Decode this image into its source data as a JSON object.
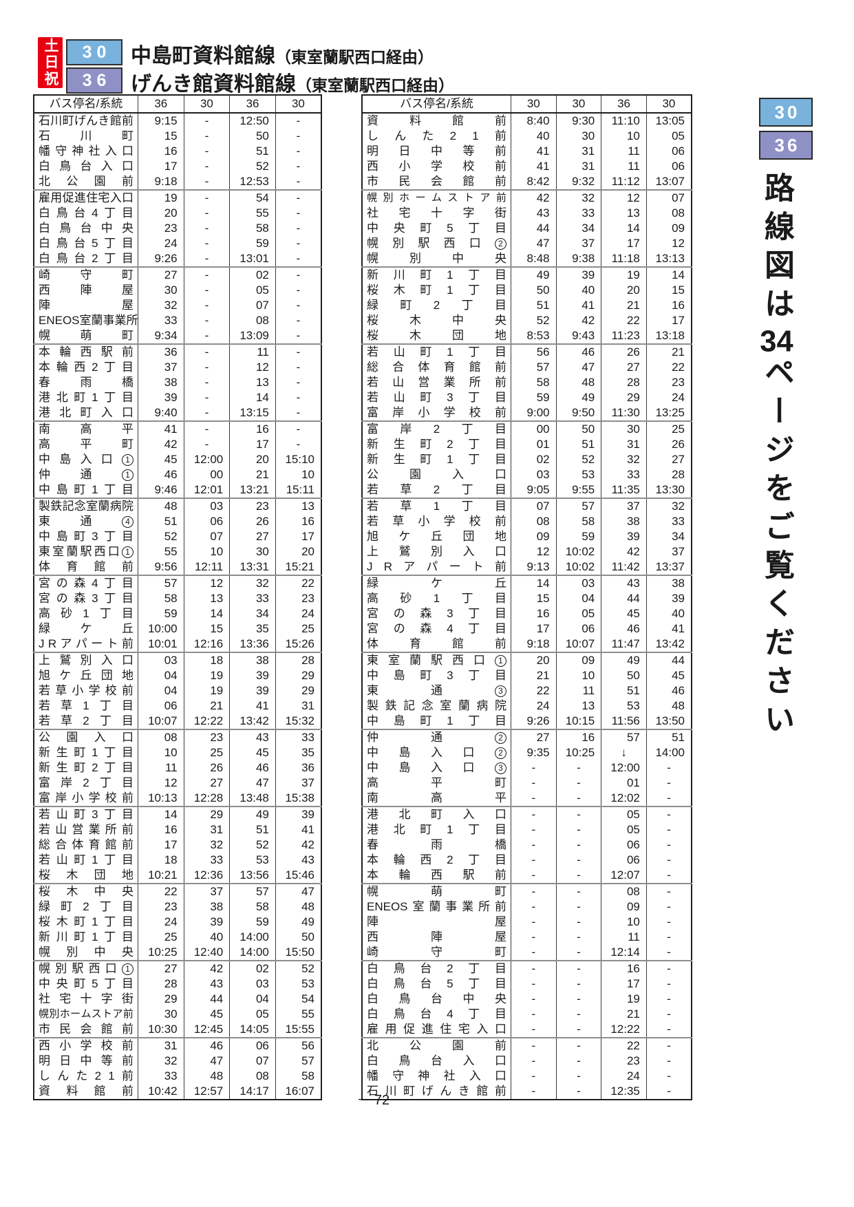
{
  "header": {
    "day_badge": "土日祝",
    "routes": [
      {
        "number": "30",
        "title": "中島町資料館線",
        "via": "（東室蘭駅西口経由）",
        "color": "#79b2dc"
      },
      {
        "number": "36",
        "title": "げんき館資料館線",
        "via": "（東室蘭駅西口経由）",
        "color": "#8f91c6"
      }
    ]
  },
  "sidebar": {
    "route_badges": [
      {
        "number": "30",
        "color": "#79b2dc"
      },
      {
        "number": "36",
        "color": "#8f91c6"
      }
    ],
    "note_prefix": "路線図は",
    "note_page": "34",
    "note_suffix": "ページをご覧ください"
  },
  "footer": {
    "page_number": "－ 72 －"
  },
  "colors": {
    "day_badge": "#e60012",
    "route30": "#79b2dc",
    "route36": "#8f91c6"
  },
  "tables": [
    {
      "header": [
        "バス停名/系統",
        "36",
        "30",
        "36",
        "30"
      ],
      "rows": [
        [
          "石川町げんき館前",
          "9:15",
          "-",
          "12:50",
          "-"
        ],
        [
          "石川町",
          "15",
          "-",
          "50",
          "-"
        ],
        [
          "幡守神社入口",
          "16",
          "-",
          "51",
          "-"
        ],
        [
          "白鳥台入口",
          "17",
          "-",
          "52",
          "-"
        ],
        [
          "北公園前",
          "9:18",
          "-",
          "12:53",
          "-"
        ],
        [
          "雇用促進住宅入口",
          "19",
          "-",
          "54",
          "-"
        ],
        [
          "白鳥台4丁目",
          "20",
          "-",
          "55",
          "-"
        ],
        [
          "白鳥台中央",
          "23",
          "-",
          "58",
          "-"
        ],
        [
          "白鳥台5丁目",
          "24",
          "-",
          "59",
          "-"
        ],
        [
          "白鳥台2丁目",
          "9:26",
          "-",
          "13:01",
          "-"
        ],
        [
          "崎守町",
          "27",
          "-",
          "02",
          "-"
        ],
        [
          "西陣屋",
          "30",
          "-",
          "05",
          "-"
        ],
        [
          "陣屋",
          "32",
          "-",
          "07",
          "-"
        ],
        [
          "ENEOS室蘭事業所前",
          "33",
          "-",
          "08",
          "-"
        ],
        [
          "幌萌町",
          "9:34",
          "-",
          "13:09",
          "-"
        ],
        [
          "本輪西駅前",
          "36",
          "-",
          "11",
          "-"
        ],
        [
          "本輪西2丁目",
          "37",
          "-",
          "12",
          "-"
        ],
        [
          "春雨橋",
          "38",
          "-",
          "13",
          "-"
        ],
        [
          "港北町1丁目",
          "39",
          "-",
          "14",
          "-"
        ],
        [
          "港北町入口",
          "9:40",
          "-",
          "13:15",
          "-"
        ],
        [
          "南高平",
          "41",
          "-",
          "16",
          "-"
        ],
        [
          "高平町",
          "42",
          "-",
          "17",
          "-"
        ],
        [
          "中島入口①",
          "45",
          "12:00",
          "20",
          "15:10"
        ],
        [
          "仲通①",
          "46",
          "00",
          "21",
          "10"
        ],
        [
          "中島町1丁目",
          "9:46",
          "12:01",
          "13:21",
          "15:11"
        ],
        [
          "製鉄記念室蘭病院",
          "48",
          "03",
          "23",
          "13"
        ],
        [
          "東通④",
          "51",
          "06",
          "26",
          "16"
        ],
        [
          "中島町3丁目",
          "52",
          "07",
          "27",
          "17"
        ],
        [
          "東室蘭駅西口①",
          "55",
          "10",
          "30",
          "20"
        ],
        [
          "体育館前",
          "9:56",
          "12:11",
          "13:31",
          "15:21"
        ],
        [
          "宮の森4丁目",
          "57",
          "12",
          "32",
          "22"
        ],
        [
          "宮の森3丁目",
          "58",
          "13",
          "33",
          "23"
        ],
        [
          "高砂1丁目",
          "59",
          "14",
          "34",
          "24"
        ],
        [
          "緑ケ丘",
          "10:00",
          "15",
          "35",
          "25"
        ],
        [
          "JRアパート前",
          "10:01",
          "12:16",
          "13:36",
          "15:26"
        ],
        [
          "上鷲別入口",
          "03",
          "18",
          "38",
          "28"
        ],
        [
          "旭ケ丘団地",
          "04",
          "19",
          "39",
          "29"
        ],
        [
          "若草小学校前",
          "04",
          "19",
          "39",
          "29"
        ],
        [
          "若草1丁目",
          "06",
          "21",
          "41",
          "31"
        ],
        [
          "若草2丁目",
          "10:07",
          "12:22",
          "13:42",
          "15:32"
        ],
        [
          "公園入口",
          "08",
          "23",
          "43",
          "33"
        ],
        [
          "新生町1丁目",
          "10",
          "25",
          "45",
          "35"
        ],
        [
          "新生町2丁目",
          "11",
          "26",
          "46",
          "36"
        ],
        [
          "富岸2丁目",
          "12",
          "27",
          "47",
          "37"
        ],
        [
          "富岸小学校前",
          "10:13",
          "12:28",
          "13:48",
          "15:38"
        ],
        [
          "若山町3丁目",
          "14",
          "29",
          "49",
          "39"
        ],
        [
          "若山営業所前",
          "16",
          "31",
          "51",
          "41"
        ],
        [
          "総合体育館前",
          "17",
          "32",
          "52",
          "42"
        ],
        [
          "若山町1丁目",
          "18",
          "33",
          "53",
          "43"
        ],
        [
          "桜木団地",
          "10:21",
          "12:36",
          "13:56",
          "15:46"
        ],
        [
          "桜木中央",
          "22",
          "37",
          "57",
          "47"
        ],
        [
          "緑町2丁目",
          "23",
          "38",
          "58",
          "48"
        ],
        [
          "桜木町1丁目",
          "24",
          "39",
          "59",
          "49"
        ],
        [
          "新川町1丁目",
          "25",
          "40",
          "14:00",
          "50"
        ],
        [
          "幌別中央",
          "10:25",
          "12:40",
          "14:00",
          "15:50"
        ],
        [
          "幌別駅西口①",
          "27",
          "42",
          "02",
          "52"
        ],
        [
          "中央町5丁目",
          "28",
          "43",
          "03",
          "53"
        ],
        [
          "社宅十字街",
          "29",
          "44",
          "04",
          "54"
        ],
        [
          "幌別ホームストア前",
          "30",
          "45",
          "05",
          "55"
        ],
        [
          "市民会館前",
          "10:30",
          "12:45",
          "14:05",
          "15:55"
        ],
        [
          "西小学校前",
          "31",
          "46",
          "06",
          "56"
        ],
        [
          "明日中等前",
          "32",
          "47",
          "07",
          "57"
        ],
        [
          "しんた21前",
          "33",
          "48",
          "08",
          "58"
        ],
        [
          "資料館前",
          "10:42",
          "12:57",
          "14:17",
          "16:07"
        ]
      ]
    },
    {
      "header": [
        "バス停名/系統",
        "30",
        "30",
        "36",
        "30"
      ],
      "rows": [
        [
          "資料館前",
          "8:40",
          "9:30",
          "11:10",
          "13:05"
        ],
        [
          "しんた21前",
          "40",
          "30",
          "10",
          "05"
        ],
        [
          "明日中等前",
          "41",
          "31",
          "11",
          "06"
        ],
        [
          "西小学校前",
          "41",
          "31",
          "11",
          "06"
        ],
        [
          "市民会館前",
          "8:42",
          "9:32",
          "11:12",
          "13:07"
        ],
        [
          "幌別ホームストア前",
          "42",
          "32",
          "12",
          "07"
        ],
        [
          "社宅十字街",
          "43",
          "33",
          "13",
          "08"
        ],
        [
          "中央町5丁目",
          "44",
          "34",
          "14",
          "09"
        ],
        [
          "幌別駅西口②",
          "47",
          "37",
          "17",
          "12"
        ],
        [
          "幌別中央",
          "8:48",
          "9:38",
          "11:18",
          "13:13"
        ],
        [
          "新川町1丁目",
          "49",
          "39",
          "19",
          "14"
        ],
        [
          "桜木町1丁目",
          "50",
          "40",
          "20",
          "15"
        ],
        [
          "緑町2丁目",
          "51",
          "41",
          "21",
          "16"
        ],
        [
          "桜木中央",
          "52",
          "42",
          "22",
          "17"
        ],
        [
          "桜木団地",
          "8:53",
          "9:43",
          "11:23",
          "13:18"
        ],
        [
          "若山町1丁目",
          "56",
          "46",
          "26",
          "21"
        ],
        [
          "総合体育館前",
          "57",
          "47",
          "27",
          "22"
        ],
        [
          "若山営業所前",
          "58",
          "48",
          "28",
          "23"
        ],
        [
          "若山町3丁目",
          "59",
          "49",
          "29",
          "24"
        ],
        [
          "富岸小学校前",
          "9:00",
          "9:50",
          "11:30",
          "13:25"
        ],
        [
          "富岸2丁目",
          "00",
          "50",
          "30",
          "25"
        ],
        [
          "新生町2丁目",
          "01",
          "51",
          "31",
          "26"
        ],
        [
          "新生町1丁目",
          "02",
          "52",
          "32",
          "27"
        ],
        [
          "公園入口",
          "03",
          "53",
          "33",
          "28"
        ],
        [
          "若草2丁目",
          "9:05",
          "9:55",
          "11:35",
          "13:30"
        ],
        [
          "若草1丁目",
          "07",
          "57",
          "37",
          "32"
        ],
        [
          "若草小学校前",
          "08",
          "58",
          "38",
          "33"
        ],
        [
          "旭ケ丘団地",
          "09",
          "59",
          "39",
          "34"
        ],
        [
          "上鷲別入口",
          "12",
          "10:02",
          "42",
          "37"
        ],
        [
          "JRアパート前",
          "9:13",
          "10:02",
          "11:42",
          "13:37"
        ],
        [
          "緑ケ丘",
          "14",
          "03",
          "43",
          "38"
        ],
        [
          "高砂1丁目",
          "15",
          "04",
          "44",
          "39"
        ],
        [
          "宮の森3丁目",
          "16",
          "05",
          "45",
          "40"
        ],
        [
          "宮の森4丁目",
          "17",
          "06",
          "46",
          "41"
        ],
        [
          "体育館前",
          "9:18",
          "10:07",
          "11:47",
          "13:42"
        ],
        [
          "東室蘭駅西口①",
          "20",
          "09",
          "49",
          "44"
        ],
        [
          "中島町3丁目",
          "21",
          "10",
          "50",
          "45"
        ],
        [
          "東通③",
          "22",
          "11",
          "51",
          "46"
        ],
        [
          "製鉄記念室蘭病院",
          "24",
          "13",
          "53",
          "48"
        ],
        [
          "中島町1丁目",
          "9:26",
          "10:15",
          "11:56",
          "13:50"
        ],
        [
          "仲通②",
          "27",
          "16",
          "57",
          "51"
        ],
        [
          "中島入口②",
          "9:35",
          "10:25",
          "↓",
          "14:00"
        ],
        [
          "中島入口③",
          "-",
          "-",
          "12:00",
          "-"
        ],
        [
          "高平町",
          "-",
          "-",
          "01",
          "-"
        ],
        [
          "南高平",
          "-",
          "-",
          "12:02",
          "-"
        ],
        [
          "港北町入口",
          "-",
          "-",
          "05",
          "-"
        ],
        [
          "港北町1丁目",
          "-",
          "-",
          "05",
          "-"
        ],
        [
          "春雨橋",
          "-",
          "-",
          "06",
          "-"
        ],
        [
          "本輪西2丁目",
          "-",
          "-",
          "06",
          "-"
        ],
        [
          "本輪西駅前",
          "-",
          "-",
          "12:07",
          "-"
        ],
        [
          "幌萌町",
          "-",
          "-",
          "08",
          "-"
        ],
        [
          "ENEOS室蘭事業所前",
          "-",
          "-",
          "09",
          "-"
        ],
        [
          "陣屋",
          "-",
          "-",
          "10",
          "-"
        ],
        [
          "西陣屋",
          "-",
          "-",
          "11",
          "-"
        ],
        [
          "崎守町",
          "-",
          "-",
          "12:14",
          "-"
        ],
        [
          "白鳥台2丁目",
          "-",
          "-",
          "16",
          "-"
        ],
        [
          "白鳥台5丁目",
          "-",
          "-",
          "17",
          "-"
        ],
        [
          "白鳥台中央",
          "-",
          "-",
          "19",
          "-"
        ],
        [
          "白鳥台4丁目",
          "-",
          "-",
          "21",
          "-"
        ],
        [
          "雇用促進住宅入口",
          "-",
          "-",
          "12:22",
          "-"
        ],
        [
          "北公園前",
          "-",
          "-",
          "22",
          "-"
        ],
        [
          "白鳥台入口",
          "-",
          "-",
          "23",
          "-"
        ],
        [
          "幡守神社入口",
          "-",
          "-",
          "24",
          "-"
        ],
        [
          "石川町げんき館前",
          "-",
          "-",
          "12:35",
          "-"
        ]
      ]
    }
  ]
}
